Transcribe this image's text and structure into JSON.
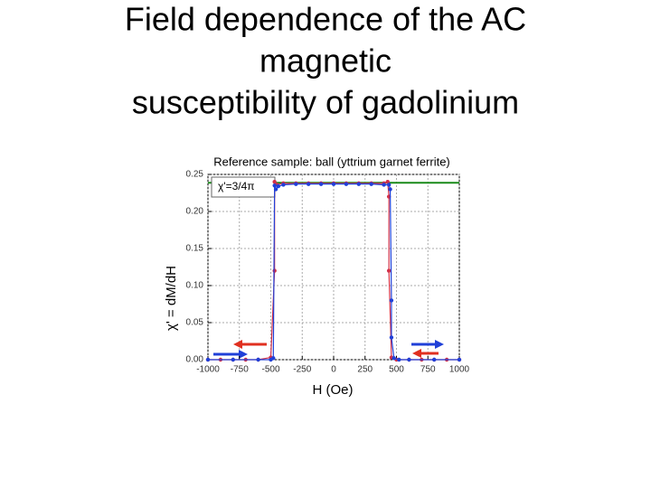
{
  "slide_title": [
    "Field dependence of the AC",
    "magnetic",
    "susceptibility of gadolinium"
  ],
  "chart_data": {
    "type": "scatter",
    "title": "Reference sample: ball (yttrium garnet ferrite)",
    "x_label": "H (Oe)",
    "y_label": "χ' = dM/dH",
    "annotation": "χ'=3/4π",
    "reference_line": 0.2387,
    "reference_color": "#1a8a1a",
    "xlim": [
      -1000,
      1000
    ],
    "xticks": [
      -1000,
      -750,
      -500,
      -250,
      0,
      250,
      500,
      750,
      1000
    ],
    "ylim": [
      0,
      0.25
    ],
    "yticks": [
      {
        "value": 0,
        "label": "0.00"
      },
      {
        "value": 0.05,
        "label": "0.05"
      },
      {
        "value": 0.1,
        "label": "0.10"
      },
      {
        "value": 0.15,
        "label": "0.15"
      },
      {
        "value": 0.2,
        "label": "0.20"
      },
      {
        "value": 0.25,
        "label": "0.25"
      }
    ],
    "grid": true,
    "series": [
      {
        "color": "#d0304a",
        "x": [
          -1000,
          -900,
          -800,
          -700,
          -600,
          -500,
          -470,
          -470,
          -450,
          -400,
          -300,
          -200,
          -100,
          0,
          100,
          200,
          300,
          400,
          430,
          440,
          440,
          460,
          500,
          600,
          700,
          800,
          900,
          1000
        ],
        "values": [
          0,
          0,
          0,
          0,
          0,
          0.003,
          0.12,
          0.24,
          0.236,
          0.238,
          0.238,
          0.238,
          0.238,
          0.238,
          0.238,
          0.238,
          0.238,
          0.238,
          0.24,
          0.22,
          0.12,
          0.003,
          0,
          0,
          0,
          0,
          0,
          0
        ]
      },
      {
        "color": "#2040d8",
        "x": [
          -1000,
          -800,
          -600,
          -500,
          -480,
          -470,
          -460,
          -440,
          -400,
          -300,
          -200,
          -100,
          0,
          100,
          200,
          300,
          400,
          440,
          450,
          460,
          460,
          480,
          520,
          600,
          800,
          1000
        ],
        "values": [
          0,
          0,
          0,
          0,
          0.002,
          0.235,
          0.23,
          0.234,
          0.236,
          0.237,
          0.237,
          0.237,
          0.237,
          0.237,
          0.237,
          0.237,
          0.236,
          0.236,
          0.23,
          0.08,
          0.03,
          0.002,
          0,
          0,
          0,
          0
        ]
      }
    ]
  }
}
